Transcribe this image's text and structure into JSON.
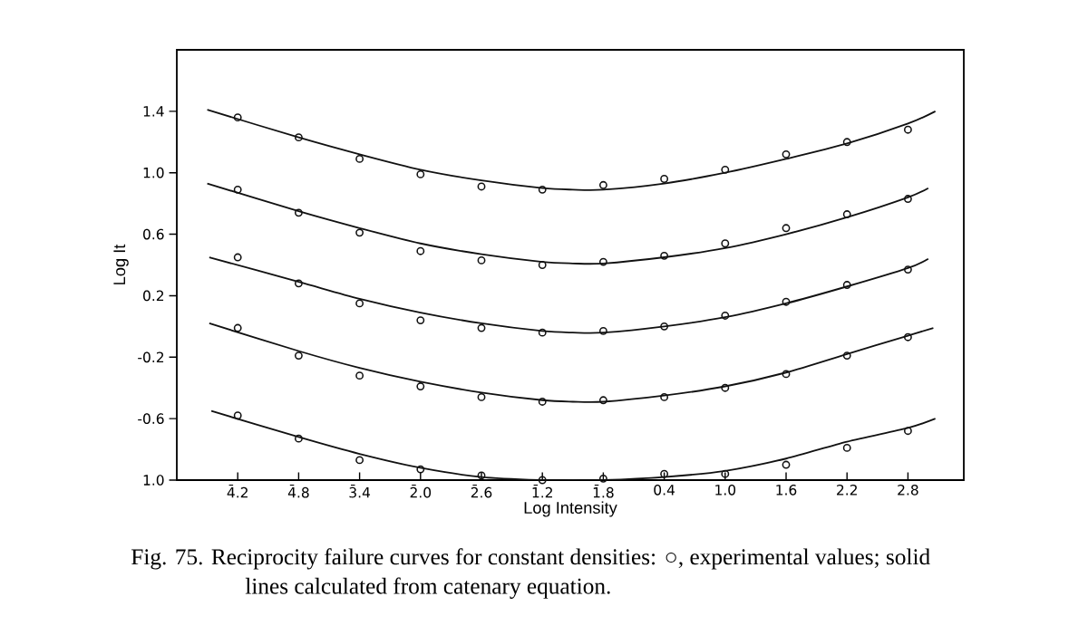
{
  "chart_data": {
    "type": "scatter",
    "xlabel": "Log Intensity",
    "ylabel": "Log It",
    "xlim": [
      -4.4,
      3.35
    ],
    "ylim": [
      -1.0,
      1.8
    ],
    "xticks": [
      {
        "value": -3.8,
        "label": "4̄.2"
      },
      {
        "value": -3.2,
        "label": "4̄.8"
      },
      {
        "value": -2.6,
        "label": "3̄.4"
      },
      {
        "value": -2.0,
        "label": "2̄.0"
      },
      {
        "value": -1.4,
        "label": "2̄.6"
      },
      {
        "value": -0.8,
        "label": "1̄.2"
      },
      {
        "value": -0.2,
        "label": "1̄.8"
      },
      0.4,
      {
        "value": 1.0,
        "label": "1.0"
      },
      1.6,
      2.2,
      2.8
    ],
    "yticks": [
      {
        "value": -1.0,
        "label": "1.0"
      },
      -0.6,
      -0.2,
      0.2,
      0.6,
      {
        "value": 1.0,
        "label": "1.0"
      },
      1.4
    ],
    "annotations": [
      "Fig. 75.  Reciprocity failure curves for constant densities: ○, experimental values; solid lines calculated from catenary equation."
    ],
    "series": [
      {
        "marker": "circle",
        "color": "#111111",
        "x": [
          -3.8,
          -3.2,
          -2.6,
          -2.0,
          -1.4,
          -0.8,
          -0.2,
          0.4,
          1.0,
          1.6,
          2.2,
          2.8
        ],
        "values": [
          1.36,
          1.23,
          1.09,
          0.99,
          0.91,
          0.89,
          0.92,
          0.96,
          1.02,
          1.12,
          1.2,
          1.28
        ]
      },
      {
        "marker": "circle",
        "color": "#111111",
        "x": [
          -3.8,
          -3.2,
          -2.6,
          -2.0,
          -1.4,
          -0.8,
          -0.2,
          0.4,
          1.0,
          1.6,
          2.2,
          2.8
        ],
        "values": [
          0.89,
          0.74,
          0.61,
          0.49,
          0.43,
          0.4,
          0.42,
          0.46,
          0.54,
          0.64,
          0.73,
          0.83
        ]
      },
      {
        "marker": "circle",
        "color": "#111111",
        "x": [
          -3.8,
          -3.2,
          -2.6,
          -2.0,
          -1.4,
          -0.8,
          -0.2,
          0.4,
          1.0,
          1.6,
          2.2,
          2.8
        ],
        "values": [
          0.45,
          0.28,
          0.15,
          0.04,
          -0.01,
          -0.04,
          -0.03,
          0.0,
          0.07,
          0.16,
          0.27,
          0.37
        ]
      },
      {
        "marker": "circle",
        "color": "#111111",
        "x": [
          -3.8,
          -3.2,
          -2.6,
          -2.0,
          -1.4,
          -0.8,
          -0.2,
          0.4,
          1.0,
          1.6,
          2.2,
          2.8
        ],
        "values": [
          -0.01,
          -0.19,
          -0.32,
          -0.39,
          -0.46,
          -0.49,
          -0.48,
          -0.46,
          -0.4,
          -0.31,
          -0.19,
          -0.07
        ]
      },
      {
        "marker": "circle",
        "color": "#111111",
        "x": [
          -3.8,
          -3.2,
          -2.6,
          -2.0,
          -1.4,
          -0.8,
          -0.2,
          0.4,
          1.0,
          1.6,
          2.2,
          2.8
        ],
        "values": [
          -0.58,
          -0.73,
          -0.87,
          -0.93,
          -0.97,
          -1.0,
          -0.99,
          -0.96,
          -0.96,
          -0.9,
          -0.79,
          -0.68
        ]
      },
      {
        "type": "line",
        "color": "#111111",
        "x": [
          -4.1,
          -3.2,
          -2.6,
          -2.0,
          -1.4,
          -0.8,
          -0.5,
          -0.2,
          0.4,
          1.0,
          1.6,
          2.2,
          2.8,
          3.07
        ],
        "values": [
          1.41,
          1.23,
          1.12,
          1.02,
          0.95,
          0.9,
          0.89,
          0.89,
          0.93,
          1.0,
          1.09,
          1.19,
          1.32,
          1.4
        ]
      },
      {
        "type": "line",
        "color": "#111111",
        "x": [
          -4.1,
          -3.2,
          -2.6,
          -2.0,
          -1.4,
          -0.8,
          -0.5,
          -0.2,
          0.4,
          1.0,
          1.6,
          2.2,
          2.8,
          3.0
        ],
        "values": [
          0.93,
          0.75,
          0.64,
          0.54,
          0.47,
          0.42,
          0.41,
          0.41,
          0.45,
          0.51,
          0.6,
          0.71,
          0.84,
          0.9
        ]
      },
      {
        "type": "line",
        "color": "#111111",
        "x": [
          -4.08,
          -3.2,
          -2.6,
          -2.0,
          -1.4,
          -0.8,
          -0.5,
          -0.2,
          0.4,
          1.0,
          1.6,
          2.2,
          2.8,
          3.0
        ],
        "values": [
          0.45,
          0.29,
          0.18,
          0.09,
          0.02,
          -0.03,
          -0.04,
          -0.04,
          0.0,
          0.06,
          0.15,
          0.26,
          0.38,
          0.44
        ]
      },
      {
        "type": "line",
        "color": "#111111",
        "x": [
          -4.08,
          -3.2,
          -2.6,
          -2.0,
          -1.4,
          -0.8,
          -0.5,
          -0.2,
          0.4,
          1.0,
          1.6,
          2.2,
          2.8,
          3.05
        ],
        "values": [
          0.02,
          -0.16,
          -0.27,
          -0.36,
          -0.43,
          -0.48,
          -0.49,
          -0.49,
          -0.45,
          -0.39,
          -0.3,
          -0.18,
          -0.06,
          -0.01
        ]
      },
      {
        "type": "line",
        "color": "#111111",
        "x": [
          -4.06,
          -3.2,
          -2.6,
          -2.0,
          -1.4,
          -0.8,
          -0.5,
          -0.2,
          0.4,
          1.0,
          1.6,
          2.2,
          2.8,
          3.07
        ],
        "values": [
          -0.55,
          -0.72,
          -0.83,
          -0.92,
          -0.98,
          -1.0,
          -1.0,
          -1.0,
          -0.98,
          -0.94,
          -0.86,
          -0.75,
          -0.66,
          -0.6
        ]
      }
    ]
  }
}
